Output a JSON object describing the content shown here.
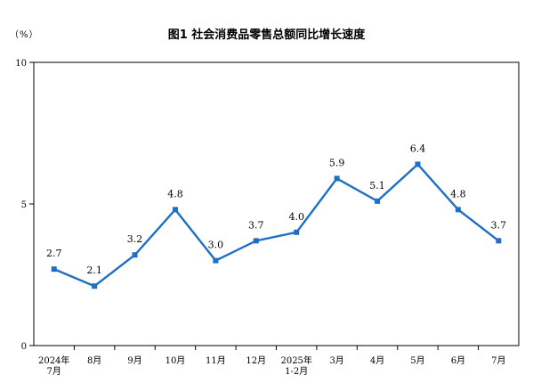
{
  "chart_data": {
    "type": "line",
    "title": "图1  社会消费品零售总额同比增长速度",
    "unit_label": "（%）",
    "categories": [
      [
        "2024年",
        "7月"
      ],
      [
        "8月"
      ],
      [
        "9月"
      ],
      [
        "10月"
      ],
      [
        "11月"
      ],
      [
        "12月"
      ],
      [
        "2025年",
        "1-2月"
      ],
      [
        "3月"
      ],
      [
        "4月"
      ],
      [
        "5月"
      ],
      [
        "6月"
      ],
      [
        "7月"
      ]
    ],
    "values": [
      2.7,
      2.1,
      3.2,
      4.8,
      3.0,
      3.7,
      4.0,
      5.9,
      5.1,
      6.4,
      4.8,
      3.7
    ],
    "value_labels": [
      "2.7",
      "2.1",
      "3.2",
      "4.8",
      "3.0",
      "3.7",
      "4.0",
      "5.9",
      "5.1",
      "6.4",
      "4.8",
      "3.7"
    ],
    "ylim": [
      0,
      10
    ],
    "yticks": [
      "0",
      "5",
      "10"
    ],
    "line_color": "#1f6fc5",
    "grid": false,
    "legend": "none"
  }
}
